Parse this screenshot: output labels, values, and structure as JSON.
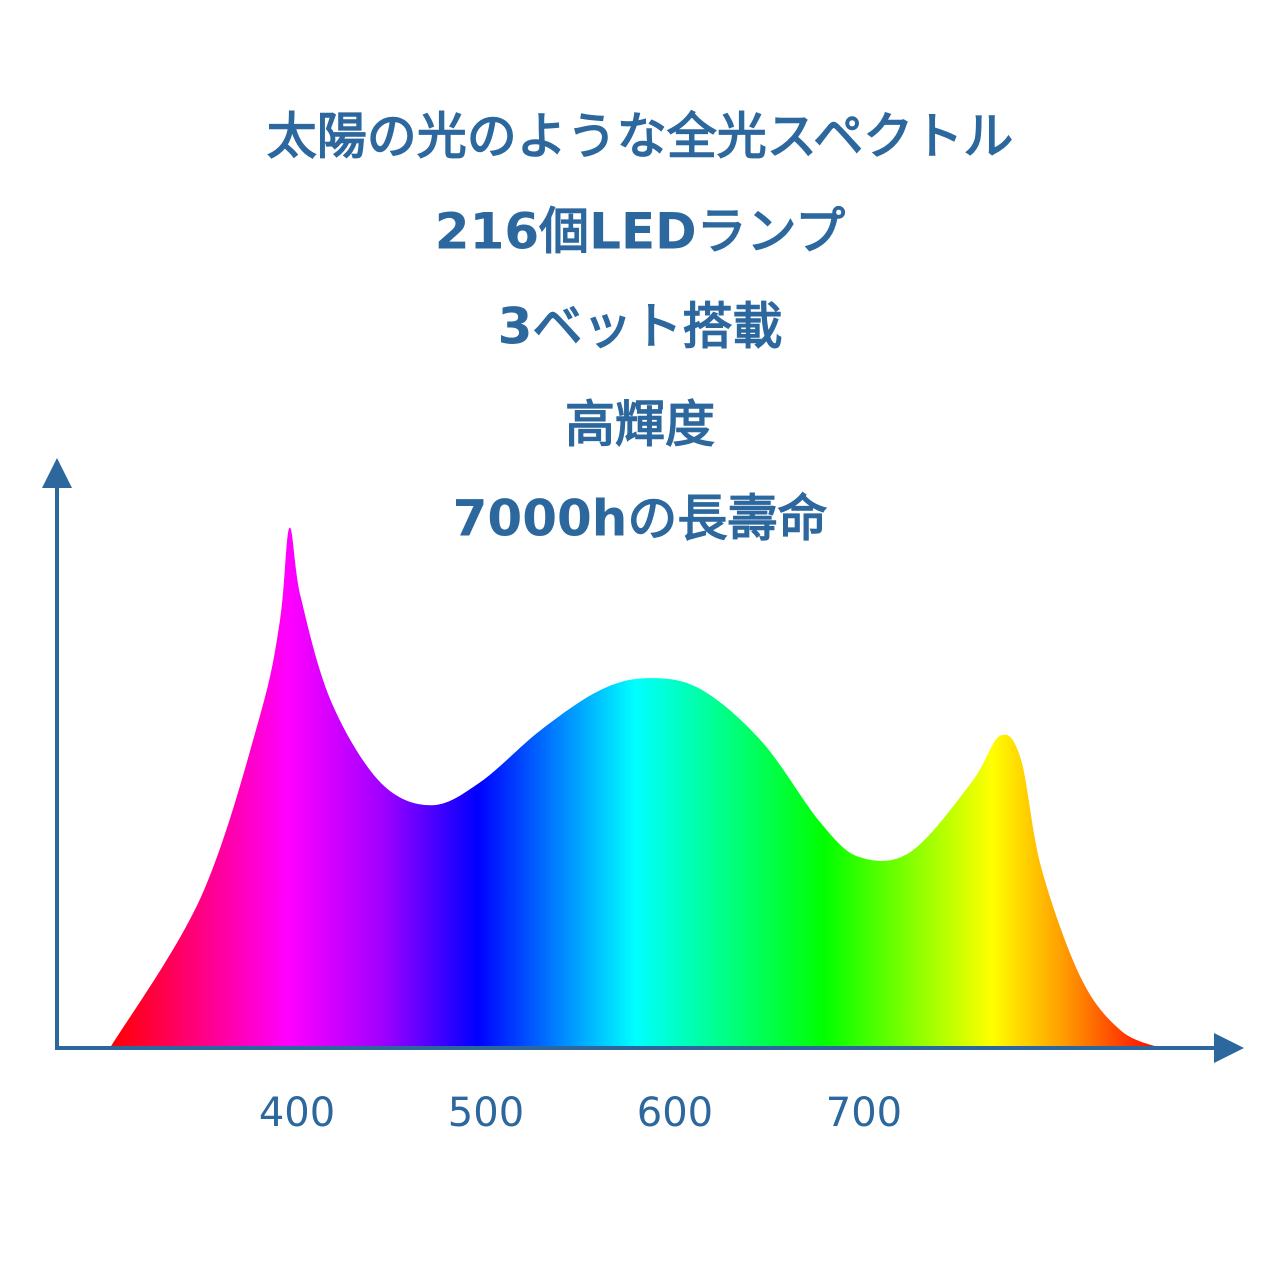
{
  "chart_data": {
    "type": "area",
    "annotations": [
      "太陽の光のような全光スペクトル",
      "216個LEDランプ",
      "3ベット搭載",
      "高輝度",
      "7000hの長壽命"
    ],
    "x": [
      301,
      349,
      380,
      391,
      396,
      402,
      418,
      444,
      471,
      497,
      529,
      561,
      587,
      614,
      646,
      677,
      698,
      725,
      757,
      772,
      783,
      794,
      815,
      836,
      857
    ],
    "values": [
      0,
      26,
      57,
      74,
      90,
      78,
      60,
      46,
      42,
      46,
      55,
      62,
      64,
      62,
      53,
      39,
      33,
      34,
      46,
      54,
      50,
      31,
      12,
      3,
      0
    ],
    "xlim": [
      273,
      899
    ],
    "xticks": [
      400,
      500,
      600,
      700
    ],
    "ylim": [
      0,
      100
    ]
  }
}
